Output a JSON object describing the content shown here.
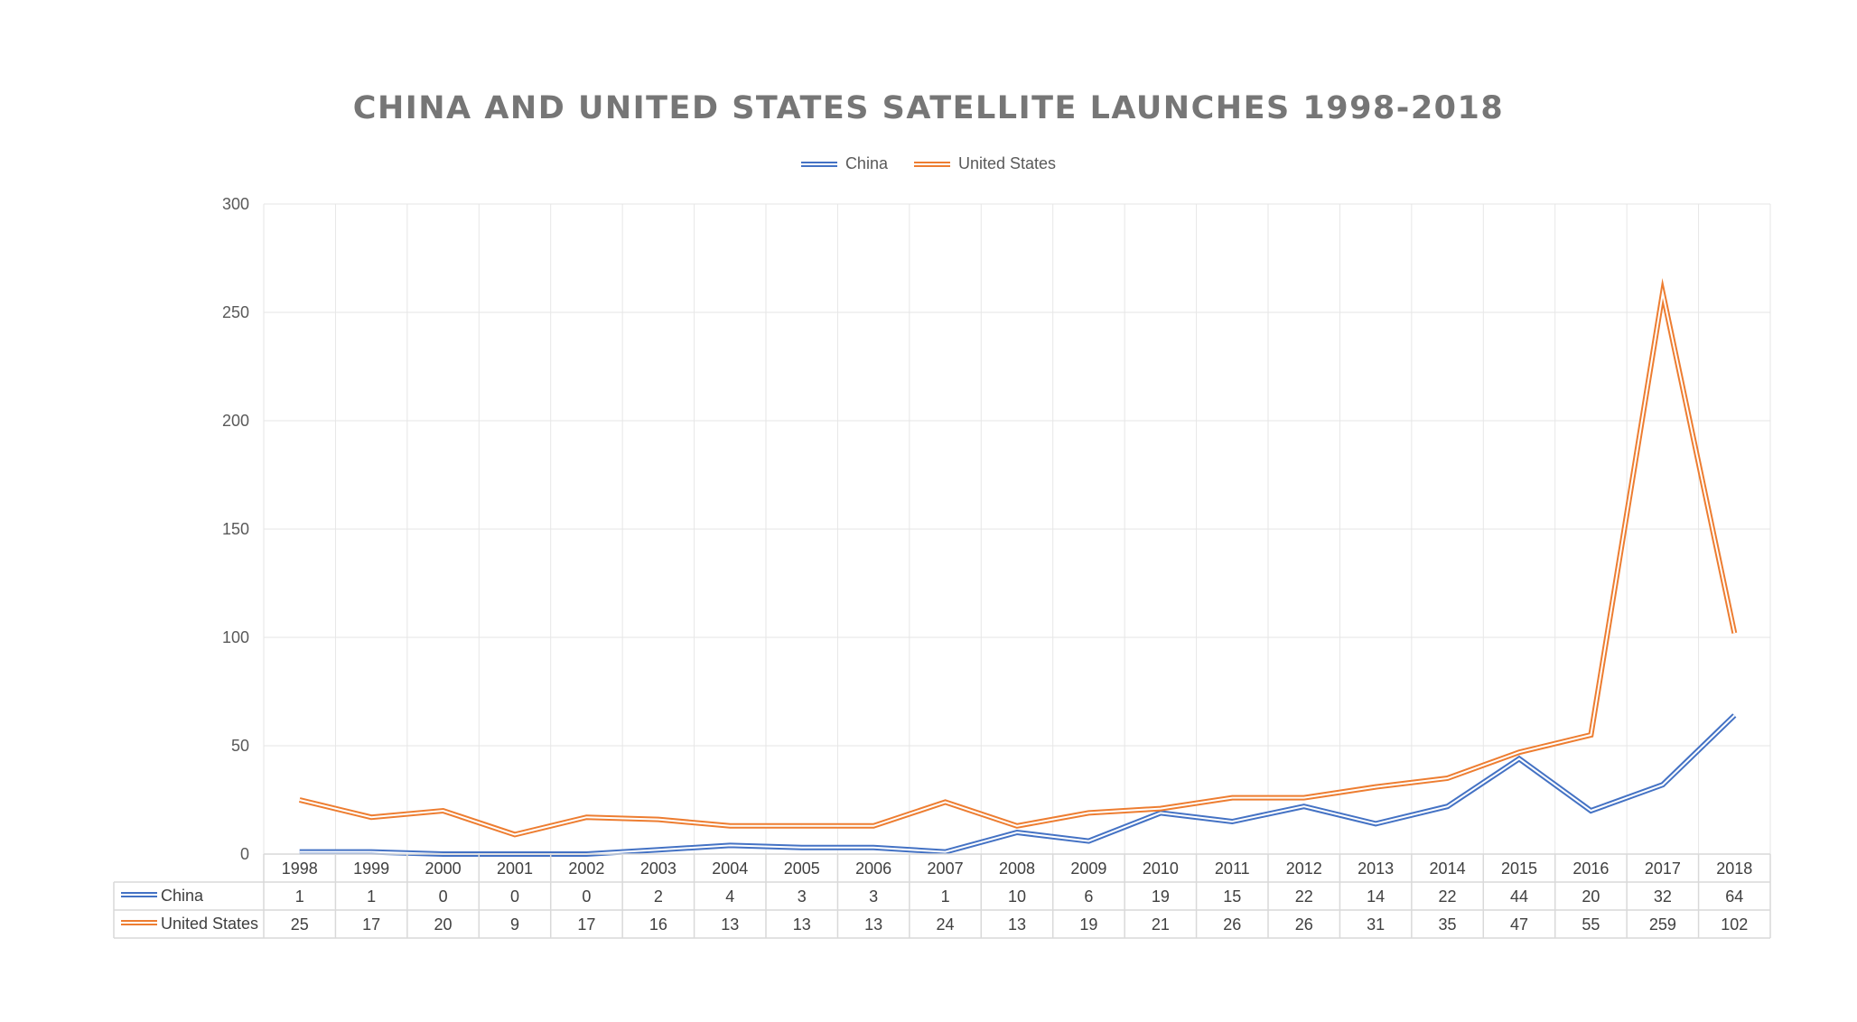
{
  "chart_data": {
    "type": "line",
    "title": "CHINA AND UNITED STATES SATELLITE LAUNCHES 1998-2018",
    "categories": [
      "1998",
      "1999",
      "2000",
      "2001",
      "2002",
      "2003",
      "2004",
      "2005",
      "2006",
      "2007",
      "2008",
      "2009",
      "2010",
      "2011",
      "2012",
      "2013",
      "2014",
      "2015",
      "2016",
      "2017",
      "2018"
    ],
    "series": [
      {
        "name": "China",
        "color": "#4472C4",
        "values": [
          1,
          1,
          0,
          0,
          0,
          2,
          4,
          3,
          3,
          1,
          10,
          6,
          19,
          15,
          22,
          14,
          22,
          44,
          20,
          32,
          64
        ]
      },
      {
        "name": "United States",
        "color": "#ED7D31",
        "values": [
          25,
          17,
          20,
          9,
          17,
          16,
          13,
          13,
          13,
          24,
          13,
          19,
          21,
          26,
          26,
          31,
          35,
          47,
          55,
          259,
          102
        ]
      }
    ],
    "ylim": [
      0,
      300
    ],
    "yticks": [
      0,
      50,
      100,
      150,
      200,
      250,
      300
    ],
    "grid": true,
    "legend": "top-center",
    "data_table": true
  }
}
